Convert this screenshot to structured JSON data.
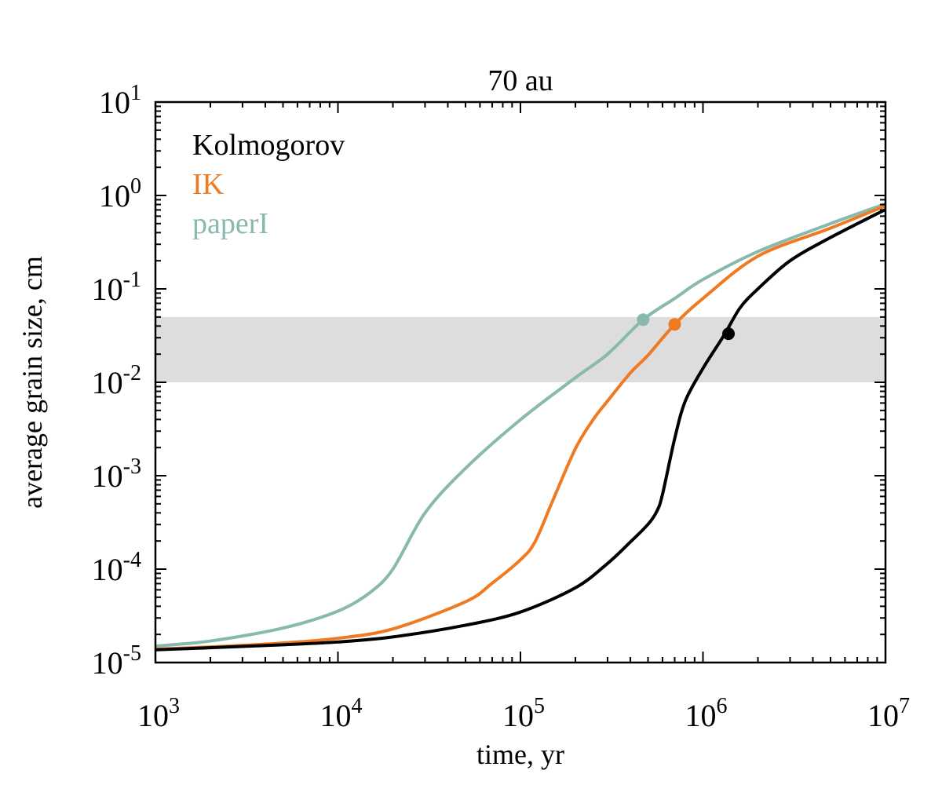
{
  "chart_data": {
    "type": "line",
    "title": "70 au",
    "xlabel": "time, yr",
    "ylabel": "average grain size, cm",
    "xscale": "log",
    "yscale": "log",
    "xlim": [
      1000,
      10000000
    ],
    "ylim": [
      1e-05,
      10
    ],
    "grid": false,
    "legend_position": "top-left",
    "x_ticks": [
      {
        "value": 1000,
        "base": "10",
        "exp": "3"
      },
      {
        "value": 10000,
        "base": "10",
        "exp": "4"
      },
      {
        "value": 100000,
        "base": "10",
        "exp": "5"
      },
      {
        "value": 1000000,
        "base": "10",
        "exp": "6"
      },
      {
        "value": 10000000,
        "base": "10",
        "exp": "7"
      }
    ],
    "y_ticks": [
      {
        "value": 1e-05,
        "base": "10",
        "exp": "-5"
      },
      {
        "value": 0.0001,
        "base": "10",
        "exp": "-4"
      },
      {
        "value": 0.001,
        "base": "10",
        "exp": "-3"
      },
      {
        "value": 0.01,
        "base": "10",
        "exp": "-2"
      },
      {
        "value": 0.1,
        "base": "10",
        "exp": "-1"
      },
      {
        "value": 1,
        "base": "10",
        "exp": "0"
      },
      {
        "value": 10,
        "base": "10",
        "exp": "1"
      }
    ],
    "shaded_band": {
      "y_min": 0.01,
      "y_max": 0.05,
      "color": "#dddddd"
    },
    "series": [
      {
        "name": "Kolmogorov",
        "color": "#000000",
        "x": [
          1000,
          2000,
          5000,
          10000,
          20000,
          50000,
          100000,
          200000,
          300000,
          400000,
          500000,
          560000,
          600000,
          700000,
          800000,
          1000000,
          1300000,
          1600000,
          2000000,
          3000000,
          5000000,
          10000000
        ],
        "y": [
          1.37e-05,
          1.44e-05,
          1.55e-05,
          1.66e-05,
          1.88e-05,
          2.51e-05,
          3.47e-05,
          6.31e-05,
          0.000115,
          0.000195,
          0.000302,
          0.00042,
          0.00063,
          0.0025,
          0.0063,
          0.0141,
          0.0316,
          0.063,
          0.1,
          0.2,
          0.355,
          0.708
        ],
        "marker": {
          "x": 1380000,
          "y": 0.0331
        }
      },
      {
        "name": "IK",
        "color": "#f07a22",
        "x": [
          1000,
          2000,
          5000,
          10000,
          20000,
          50000,
          70000,
          100000,
          120000,
          150000,
          200000,
          250000,
          300000,
          400000,
          500000,
          700000,
          1000000,
          2000000,
          5000000,
          10000000
        ],
        "y": [
          1.39e-05,
          1.47e-05,
          1.62e-05,
          1.82e-05,
          2.29e-05,
          4.47e-05,
          7.08e-05,
          0.000126,
          0.000195,
          0.000537,
          0.00195,
          0.00398,
          0.0063,
          0.0126,
          0.0195,
          0.0417,
          0.079,
          0.224,
          0.447,
          0.776
        ],
        "marker": {
          "x": 700000,
          "y": 0.0417
        }
      },
      {
        "name": "paperI",
        "color": "#87b9ae",
        "x": [
          1000,
          2000,
          5000,
          10000,
          15000,
          20000,
          30000,
          50000,
          100000,
          200000,
          300000,
          470000,
          700000,
          1000000,
          2000000,
          5000000,
          10000000
        ],
        "y": [
          1.5e-05,
          1.7e-05,
          2.34e-05,
          3.55e-05,
          5.62e-05,
          0.0001,
          0.0004,
          0.0012,
          0.00398,
          0.0112,
          0.02,
          0.0468,
          0.079,
          0.126,
          0.251,
          0.5,
          0.813
        ],
        "marker": {
          "x": 470000,
          "y": 0.0468
        }
      }
    ]
  }
}
